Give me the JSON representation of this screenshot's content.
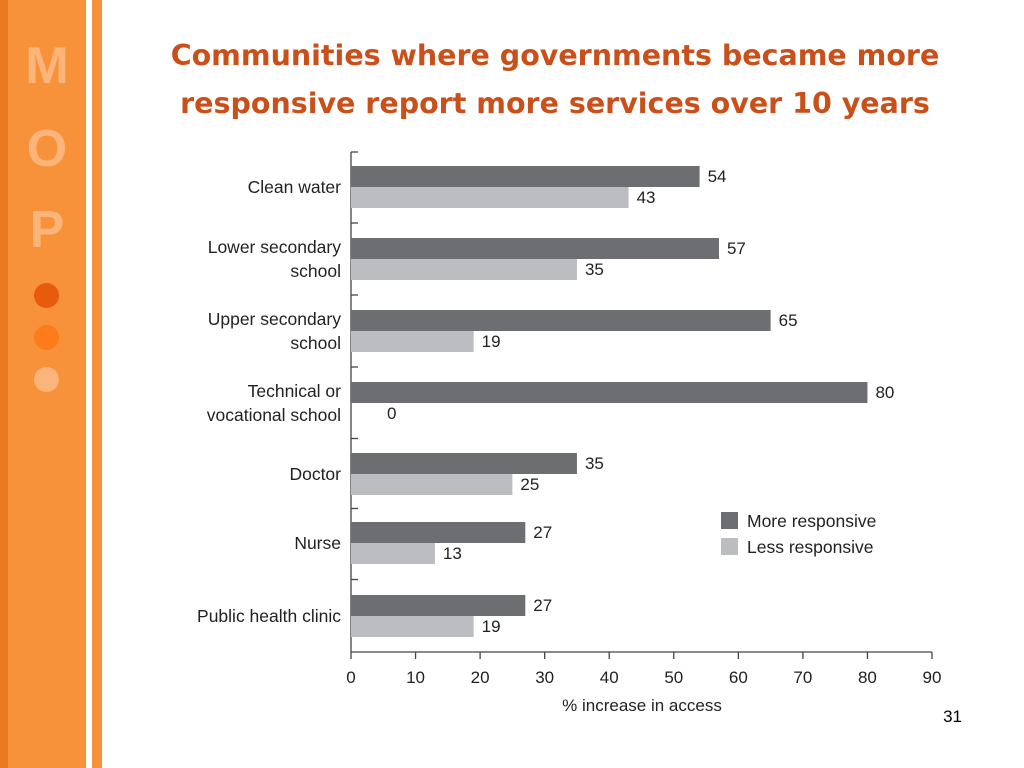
{
  "logo": {
    "letters": [
      "M",
      "O",
      "P"
    ],
    "dot_colors": [
      "#E85A0C",
      "#FF7A1A",
      "#FBB57A"
    ]
  },
  "slide": {
    "title_line1": "Communities where governments became more",
    "title_line2": "responsive report more services over 10 years",
    "page_number": "31"
  },
  "colors": {
    "more": "#6D6E71",
    "less": "#BCBDC0",
    "title": "#C9501A",
    "sidebar": "#F7923A"
  },
  "chart_data": {
    "type": "bar",
    "orientation": "horizontal",
    "categories": [
      [
        "Clean water"
      ],
      [
        "Lower secondary",
        "school"
      ],
      [
        "Upper secondary",
        "school"
      ],
      [
        "Technical or",
        "vocational school"
      ],
      [
        "Doctor"
      ],
      [
        "Nurse"
      ],
      [
        "Public health clinic"
      ]
    ],
    "series": [
      {
        "name": "More responsive",
        "values": [
          54,
          57,
          65,
          80,
          35,
          27,
          27
        ]
      },
      {
        "name": "Less responsive",
        "values": [
          43,
          35,
          19,
          0,
          25,
          13,
          19
        ]
      }
    ],
    "xlabel": "% increase in access",
    "xlim": [
      0,
      90
    ],
    "xticks": [
      0,
      10,
      20,
      30,
      40,
      50,
      60,
      70,
      80,
      90
    ],
    "legend_position": "right",
    "grid": false
  }
}
